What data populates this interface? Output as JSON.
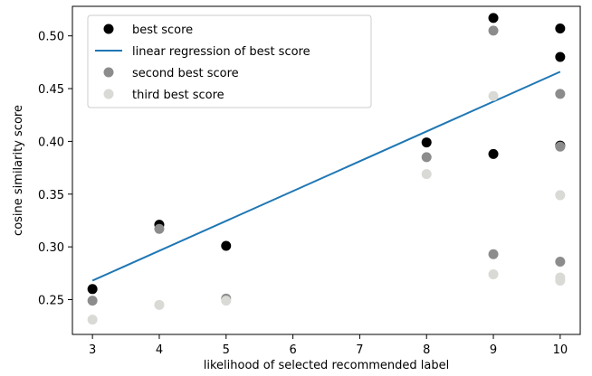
{
  "chart_data": {
    "type": "scatter",
    "xlabel": "likelihood of selected recommended label",
    "ylabel": "cosine similarity score",
    "xlim": [
      2.7,
      10.3
    ],
    "ylim": [
      0.217,
      0.528
    ],
    "xticks": [
      "3",
      "4",
      "5",
      "6",
      "7",
      "8",
      "9",
      "10"
    ],
    "yticks": [
      "0.25",
      "0.30",
      "0.35",
      "0.40",
      "0.45",
      "0.50"
    ],
    "grid": false,
    "legend_position": "upper-left",
    "series": [
      {
        "name": "best score",
        "kind": "points",
        "color": "#000000",
        "x": [
          3,
          4,
          5,
          8,
          9,
          9,
          10,
          10,
          10
        ],
        "y": [
          0.26,
          0.321,
          0.301,
          0.399,
          0.388,
          0.517,
          0.507,
          0.48,
          0.396
        ]
      },
      {
        "name": "linear regression of best score",
        "kind": "line",
        "color": "#1f77b4",
        "x": [
          3,
          10
        ],
        "y": [
          0.268,
          0.466
        ]
      },
      {
        "name": "second best score",
        "kind": "points",
        "color": "#8c8c8c",
        "x": [
          3,
          4,
          5,
          8,
          9,
          9,
          10,
          10,
          10
        ],
        "y": [
          0.249,
          0.317,
          0.251,
          0.385,
          0.293,
          0.505,
          0.445,
          0.395,
          0.286
        ]
      },
      {
        "name": "third best score",
        "kind": "points",
        "color": "#d9d9d6",
        "x": [
          3,
          4,
          5,
          8,
          9,
          9,
          10,
          10,
          10
        ],
        "y": [
          0.231,
          0.245,
          0.249,
          0.369,
          0.443,
          0.274,
          0.349,
          0.271,
          0.268
        ]
      }
    ]
  }
}
